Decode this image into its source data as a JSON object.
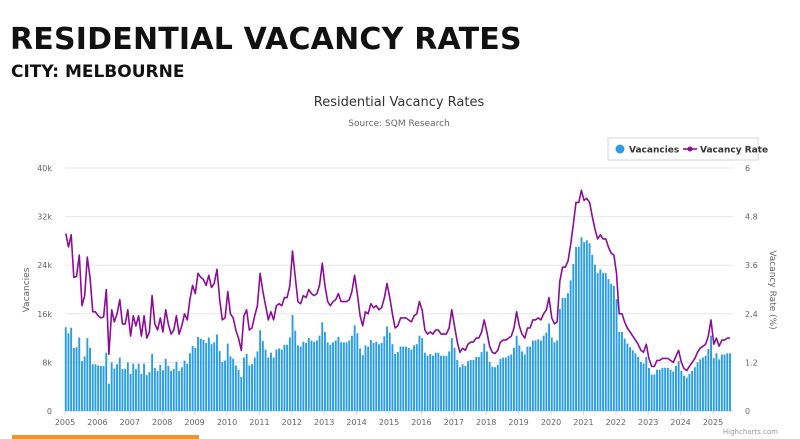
{
  "page": {
    "title": "RESIDENTIAL VACANCY RATES",
    "city": "CITY: MELBOURNE",
    "credit": "Highcharts.com"
  },
  "chart_data": {
    "type": "bar+line",
    "title": "Residential Vacancy Rates",
    "subtitle": "Source: SQM Research",
    "xlabel": "",
    "ylabel_left": "Vacancies",
    "ylabel_right": "Vacancy Rate (%)",
    "ylim_left": [
      0,
      40000
    ],
    "ylim_right": [
      0,
      6
    ],
    "yticks_left": [
      "0",
      "8k",
      "16k",
      "24k",
      "32k",
      "40k"
    ],
    "yticks_right": [
      "0",
      "1.2",
      "2.4",
      "3.6",
      "4.8",
      "6"
    ],
    "xticks": [
      "2005",
      "2006",
      "2007",
      "2008",
      "2009",
      "2010",
      "2011",
      "2012",
      "2013",
      "2014",
      "2015",
      "2016",
      "2017",
      "2018",
      "2019",
      "2020",
      "2021",
      "2022",
      "2023",
      "2024",
      "2025"
    ],
    "grid": true,
    "legend_position": "top-right",
    "frequency": "monthly",
    "series": [
      {
        "name": "Vacancies",
        "type": "bar",
        "axis": "left",
        "color": "#2a9de6"
      },
      {
        "name": "Vacancy Rate",
        "type": "line",
        "axis": "right",
        "color": "#8b0e96"
      }
    ],
    "years": [
      {
        "year": 2005,
        "vacancies": [
          13800,
          12800,
          13700,
          10400,
          10500,
          12100,
          8200,
          9000,
          12000,
          10400,
          7700,
          7700
        ],
        "rate": [
          4.38,
          4.05,
          4.35,
          3.3,
          3.32,
          3.85,
          2.6,
          2.85,
          3.8,
          3.3,
          2.45,
          2.45
        ]
      },
      {
        "year": 2006,
        "vacancies": [
          7500,
          7400,
          7400,
          9600,
          4500,
          8000,
          7000,
          7700,
          8800,
          6900,
          6900,
          8000
        ],
        "rate": [
          2.35,
          2.3,
          2.32,
          3.0,
          1.4,
          2.5,
          2.2,
          2.4,
          2.75,
          2.15,
          2.15,
          2.5
        ]
      },
      {
        "year": 2007,
        "vacancies": [
          6100,
          7800,
          6900,
          7800,
          6100,
          7800,
          5900,
          6400,
          9400,
          7100,
          6600,
          7600
        ],
        "rate": [
          1.85,
          2.35,
          2.1,
          2.35,
          1.85,
          2.35,
          1.8,
          1.95,
          2.85,
          2.15,
          2.0,
          2.3
        ]
      },
      {
        "year": 2008,
        "vacancies": [
          6700,
          8600,
          7400,
          6600,
          6900,
          8100,
          6600,
          7200,
          8300,
          7800,
          9500,
          10700
        ],
        "rate": [
          1.95,
          2.5,
          2.15,
          1.9,
          2.0,
          2.35,
          1.9,
          2.1,
          2.4,
          2.25,
          2.75,
          3.1
        ]
      },
      {
        "year": 2009,
        "vacancies": [
          10400,
          12200,
          11900,
          11700,
          11200,
          12100,
          11000,
          11300,
          12600,
          9900,
          8100,
          8300
        ],
        "rate": [
          2.9,
          3.4,
          3.3,
          3.25,
          3.1,
          3.35,
          3.05,
          3.15,
          3.5,
          2.75,
          2.25,
          2.3
        ]
      },
      {
        "year": 2010,
        "vacancies": [
          11100,
          9000,
          8600,
          7500,
          6800,
          5600,
          8800,
          9400,
          7500,
          7700,
          8800,
          9800
        ],
        "rate": [
          2.95,
          2.4,
          2.3,
          2.0,
          1.8,
          1.5,
          2.35,
          2.5,
          2.0,
          2.05,
          2.35,
          2.6
        ]
      },
      {
        "year": 2011,
        "vacancies": [
          13300,
          11500,
          10100,
          8800,
          9600,
          8800,
          10100,
          10300,
          10100,
          10900,
          10900,
          12100
        ],
        "rate": [
          3.4,
          2.95,
          2.6,
          2.25,
          2.45,
          2.25,
          2.6,
          2.65,
          2.6,
          2.8,
          2.8,
          3.1
        ]
      },
      {
        "year": 2012,
        "vacancies": [
          15800,
          13200,
          10800,
          10600,
          11400,
          11200,
          12000,
          11600,
          11400,
          11600,
          12400,
          14600
        ],
        "rate": [
          3.95,
          3.3,
          2.7,
          2.65,
          2.85,
          2.8,
          3.0,
          2.9,
          2.85,
          2.9,
          3.1,
          3.65
        ]
      },
      {
        "year": 2013,
        "vacancies": [
          13000,
          11300,
          10900,
          11300,
          11600,
          12200,
          11300,
          11300,
          11300,
          11600,
          12400,
          14100
        ],
        "rate": [
          3.1,
          2.7,
          2.6,
          2.7,
          2.75,
          2.9,
          2.7,
          2.7,
          2.7,
          2.75,
          2.95,
          3.35
        ]
      },
      {
        "year": 2014,
        "vacancies": [
          12800,
          10300,
          9200,
          10800,
          10600,
          11700,
          11200,
          11400,
          11000,
          11200,
          12300,
          13900
        ],
        "rate": [
          2.9,
          2.35,
          2.1,
          2.45,
          2.4,
          2.65,
          2.55,
          2.6,
          2.5,
          2.55,
          2.8,
          3.15
        ]
      },
      {
        "year": 2015,
        "vacancies": [
          12900,
          11000,
          9400,
          9700,
          10600,
          10600,
          10600,
          10400,
          10100,
          10800,
          11000,
          12400
        ],
        "rate": [
          2.8,
          2.4,
          2.05,
          2.1,
          2.3,
          2.3,
          2.3,
          2.25,
          2.2,
          2.35,
          2.4,
          2.7
        ]
      },
      {
        "year": 2016,
        "vacancies": [
          12000,
          9600,
          9100,
          9400,
          9100,
          9600,
          9600,
          9100,
          9100,
          9100,
          9800,
          12000
        ],
        "rate": [
          2.5,
          2.0,
          1.9,
          1.95,
          1.9,
          2.0,
          2.0,
          1.9,
          1.9,
          1.9,
          2.05,
          2.5
        ]
      },
      {
        "year": 2017,
        "vacancies": [
          10400,
          8400,
          7200,
          7700,
          7400,
          8200,
          8400,
          8400,
          8900,
          8900,
          9700,
          11100
        ],
        "rate": [
          2.1,
          1.7,
          1.45,
          1.55,
          1.5,
          1.65,
          1.7,
          1.7,
          1.8,
          1.8,
          1.95,
          2.25
        ]
      },
      {
        "year": 2018,
        "vacancies": [
          9800,
          8100,
          7300,
          7200,
          7600,
          8600,
          8800,
          8800,
          9100,
          9300,
          10400,
          12400
        ],
        "rate": [
          1.95,
          1.6,
          1.45,
          1.42,
          1.5,
          1.7,
          1.75,
          1.75,
          1.8,
          1.85,
          2.05,
          2.45
        ]
      },
      {
        "year": 2019,
        "vacancies": [
          10800,
          9800,
          9300,
          10600,
          10600,
          11600,
          11600,
          11800,
          11600,
          12400,
          12900,
          14400
        ],
        "rate": [
          2.1,
          1.9,
          1.8,
          2.05,
          2.05,
          2.25,
          2.25,
          2.3,
          2.25,
          2.4,
          2.5,
          2.8
        ]
      },
      {
        "year": 2020,
        "vacancies": [
          12100,
          11300,
          11600,
          16800,
          18600,
          18600,
          19400,
          21500,
          24200,
          27000,
          27000,
          28600
        ],
        "rate": [
          2.3,
          2.15,
          2.2,
          3.2,
          3.55,
          3.55,
          3.7,
          4.1,
          4.6,
          5.15,
          5.15,
          5.45
        ]
      },
      {
        "year": 2021,
        "vacancies": [
          27800,
          28100,
          27600,
          25700,
          24100,
          22700,
          23300,
          22700,
          22700,
          21700,
          20900,
          20600
        ],
        "rate": [
          5.2,
          5.25,
          5.15,
          4.8,
          4.5,
          4.25,
          4.35,
          4.25,
          4.25,
          4.05,
          3.9,
          3.85
        ]
      },
      {
        "year": 2022,
        "vacancies": [
          18400,
          13000,
          13000,
          11900,
          11100,
          10500,
          10000,
          9500,
          8900,
          8100,
          7800,
          8900
        ],
        "rate": [
          3.4,
          2.4,
          2.4,
          2.2,
          2.05,
          1.95,
          1.85,
          1.75,
          1.65,
          1.5,
          1.45,
          1.65
        ]
      },
      {
        "year": 2023,
        "vacancies": [
          7100,
          6000,
          6000,
          6800,
          6800,
          7100,
          7100,
          7100,
          6800,
          6500,
          7400,
          8200
        ],
        "rate": [
          1.3,
          1.1,
          1.1,
          1.25,
          1.25,
          1.3,
          1.3,
          1.3,
          1.25,
          1.2,
          1.35,
          1.5
        ]
      },
      {
        "year": 2024,
        "vacancies": [
          6600,
          5800,
          5500,
          6100,
          6600,
          7200,
          8000,
          8500,
          8800,
          9100,
          10200,
          12400
        ],
        "rate": [
          1.2,
          1.05,
          1.0,
          1.1,
          1.2,
          1.3,
          1.45,
          1.55,
          1.6,
          1.65,
          1.85,
          2.25
        ]
      },
      {
        "year": 2025,
        "vacancies": [
          8700,
          9500,
          8500,
          9300,
          9300,
          9500,
          9500
        ],
        "rate": [
          1.65,
          1.8,
          1.6,
          1.75,
          1.75,
          1.8,
          1.8
        ]
      }
    ]
  }
}
